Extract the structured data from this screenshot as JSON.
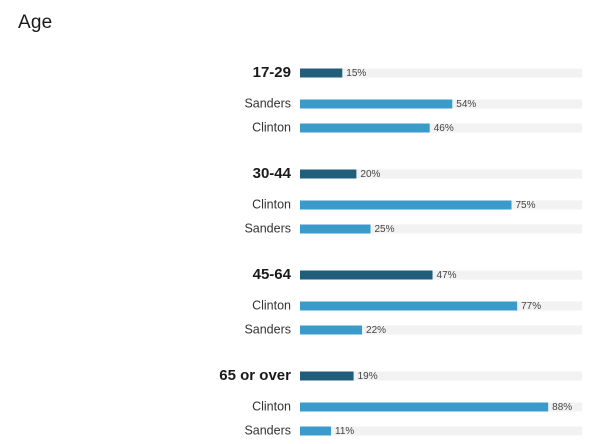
{
  "title": "Age",
  "colors": {
    "group_bar": "#215e7c",
    "candidate_bar": "#3a9bcb",
    "track": "#f2f2f2"
  },
  "chart_data": {
    "type": "bar",
    "orientation": "horizontal",
    "title": "Age",
    "xlim": [
      0,
      100
    ],
    "unit": "%",
    "groups": [
      {
        "label": "17-29",
        "share": 15,
        "candidates": [
          {
            "name": "Sanders",
            "value": 54
          },
          {
            "name": "Clinton",
            "value": 46
          }
        ]
      },
      {
        "label": "30-44",
        "share": 20,
        "candidates": [
          {
            "name": "Clinton",
            "value": 75
          },
          {
            "name": "Sanders",
            "value": 25
          }
        ]
      },
      {
        "label": "45-64",
        "share": 47,
        "candidates": [
          {
            "name": "Clinton",
            "value": 77
          },
          {
            "name": "Sanders",
            "value": 22
          }
        ]
      },
      {
        "label": "65 or over",
        "share": 19,
        "candidates": [
          {
            "name": "Clinton",
            "value": 88
          },
          {
            "name": "Sanders",
            "value": 11
          }
        ]
      }
    ]
  }
}
